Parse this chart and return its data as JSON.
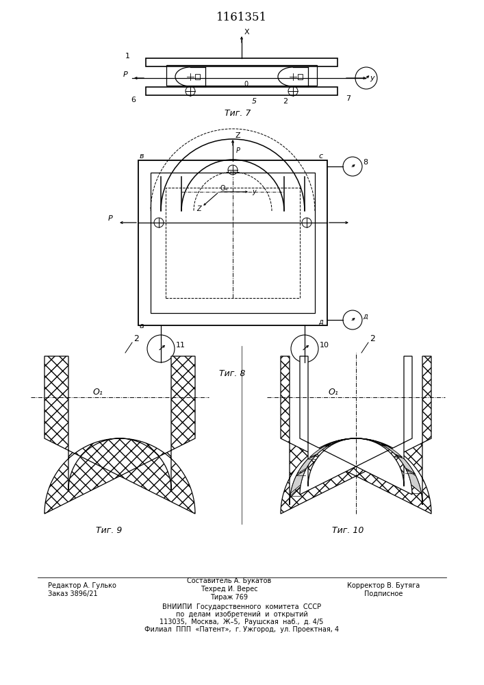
{
  "title": "1161351",
  "bg_color": "#ffffff",
  "line_color": "#000000",
  "fig1_caption": "Τиг. 7",
  "fig2_caption": "Τиг. 8",
  "fig3_caption": "Τиг. 9",
  "fig4_caption": "Τиг. 10",
  "footer_line1": "Редактор А. Гулько",
  "footer_line2": "Заказ 3896/21",
  "footer_col2_line1": "Составитель А. Букатов",
  "footer_col2_line2": "Техред И. Верес",
  "footer_col2_line3": "Тираж 769",
  "footer_col3_line1": "Корректор В. Бутяга",
  "footer_col3_line2": "Подписное",
  "footer_org1": "ВНИИПИ  Государственного  комитета  СССР",
  "footer_org2": "по  делам  изобретений  и  открытий",
  "footer_org3": "113035,  Москва,  Ж–5,  Раушская  наб.,  д. 4/5",
  "footer_org4": "Филиал  ППП  «Патент»,  г. Ужгород,  ул. Проектная, 4"
}
